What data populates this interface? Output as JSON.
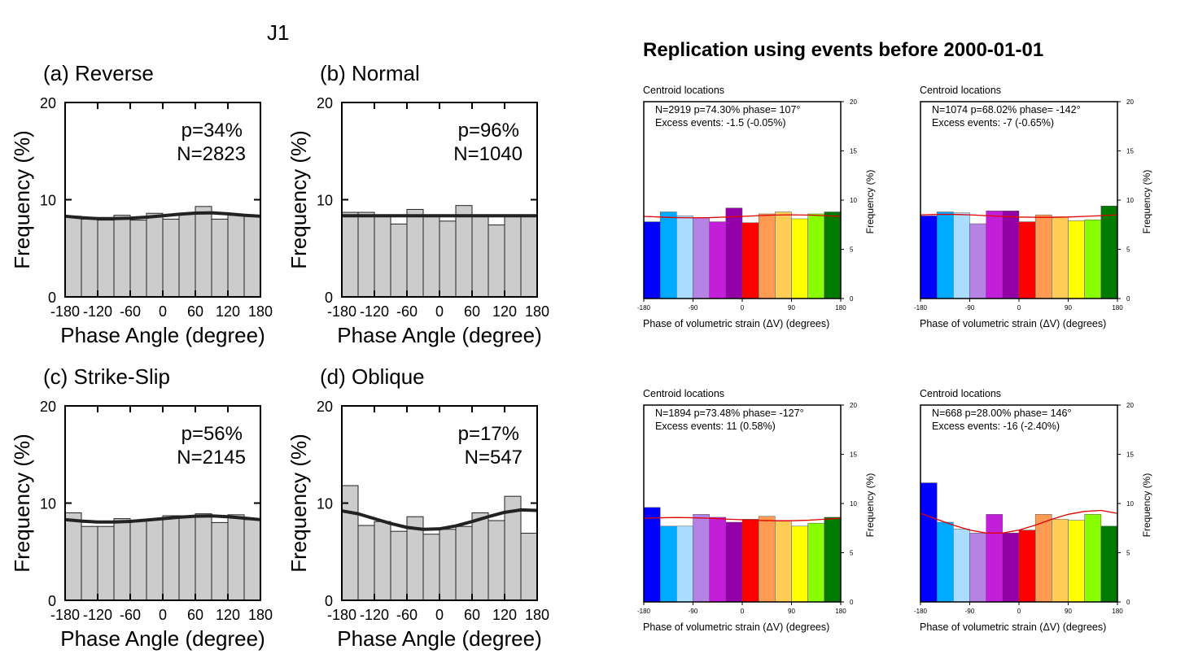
{
  "left_figure": {
    "label": "J1",
    "x_tick_labels": [
      "-180",
      "-120",
      "-60",
      "0",
      "60",
      "120",
      "180"
    ],
    "y_tick_labels": [
      "0",
      "10",
      "20"
    ],
    "xlabel": "Phase Angle (degree)",
    "ylabel": "Frequency (%)"
  },
  "right_figure": {
    "title": "Replication using events before 2000-01-01",
    "panel_header": "Centroid locations",
    "x_tick_labels": [
      "-180",
      "-90",
      "0",
      "90",
      "180"
    ],
    "y_tick_labels": [
      "0",
      "5",
      "10",
      "15",
      "20"
    ],
    "xlabel": "Phase of volumetric strain (ΔV) (degrees)",
    "ylabel": "Frequency (%)",
    "bar_colors": [
      "#0000ff",
      "#00aaff",
      "#aaddff",
      "#b583e4",
      "#c21fd8",
      "#9300a8",
      "#ff0000",
      "#ff9a52",
      "#ffcc55",
      "#ffff00",
      "#88ff00",
      "#007a00"
    ],
    "fit_color": "#e00000"
  },
  "chart_data": [
    {
      "type": "bar",
      "title": "(a) Reverse",
      "annotation": [
        "p=34%",
        "N=2823"
      ],
      "x_bin_edges": [
        -180,
        -150,
        -120,
        -90,
        -60,
        -30,
        0,
        30,
        60,
        90,
        120,
        150,
        180
      ],
      "values": [
        8.3,
        8.0,
        7.9,
        8.4,
        7.9,
        8.6,
        8.0,
        8.6,
        9.3,
        8.0,
        8.4,
        8.3
      ],
      "fit": [
        8.3,
        8.15,
        8.05,
        8.05,
        8.1,
        8.2,
        8.35,
        8.5,
        8.62,
        8.65,
        8.55,
        8.4,
        8.3
      ],
      "ylim": [
        0,
        20
      ],
      "xlim": [
        -180,
        180
      ],
      "xlabel": "Phase Angle (degree)",
      "ylabel": "Frequency (%)"
    },
    {
      "type": "bar",
      "title": "(b) Normal",
      "annotation": [
        "p=96%",
        "N=1040"
      ],
      "x_bin_edges": [
        -180,
        -150,
        -120,
        -90,
        -60,
        -30,
        0,
        30,
        60,
        90,
        120,
        150,
        180
      ],
      "values": [
        8.7,
        8.7,
        8.3,
        7.5,
        9.0,
        8.3,
        7.8,
        9.4,
        8.3,
        7.4,
        8.3,
        8.4
      ],
      "fit": [
        8.35,
        8.35,
        8.35,
        8.35,
        8.35,
        8.35,
        8.35,
        8.35,
        8.35,
        8.35,
        8.35,
        8.35,
        8.35
      ],
      "ylim": [
        0,
        20
      ],
      "xlim": [
        -180,
        180
      ],
      "xlabel": "Phase Angle (degree)",
      "ylabel": "Frequency (%)"
    },
    {
      "type": "bar",
      "title": "(c) Strike-Slip",
      "annotation": [
        "p=56%",
        "N=2145"
      ],
      "x_bin_edges": [
        -180,
        -150,
        -120,
        -90,
        -60,
        -30,
        0,
        30,
        60,
        90,
        120,
        150,
        180
      ],
      "values": [
        9.0,
        7.6,
        7.6,
        8.4,
        8.2,
        8.3,
        8.7,
        8.7,
        8.9,
        8.0,
        8.8,
        8.3
      ],
      "fit": [
        8.3,
        8.15,
        8.05,
        8.05,
        8.12,
        8.25,
        8.4,
        8.55,
        8.65,
        8.68,
        8.6,
        8.45,
        8.3
      ],
      "ylim": [
        0,
        20
      ],
      "xlim": [
        -180,
        180
      ],
      "xlabel": "Phase Angle (degree)",
      "ylabel": "Frequency (%)"
    },
    {
      "type": "bar",
      "title": "(d) Oblique",
      "annotation": [
        "p=17%",
        "N=547"
      ],
      "x_bin_edges": [
        -180,
        -150,
        -120,
        -90,
        -60,
        -30,
        0,
        30,
        60,
        90,
        120,
        150,
        180
      ],
      "values": [
        11.8,
        7.7,
        8.1,
        7.1,
        8.6,
        6.8,
        7.3,
        7.6,
        9.0,
        8.2,
        10.7,
        6.9
      ],
      "fit": [
        9.2,
        8.9,
        8.4,
        7.9,
        7.5,
        7.3,
        7.35,
        7.65,
        8.1,
        8.6,
        9.05,
        9.3,
        9.25
      ],
      "ylim": [
        0,
        20
      ],
      "xlim": [
        -180,
        180
      ],
      "xlabel": "Phase Angle (degree)",
      "ylabel": "Frequency (%)"
    },
    {
      "type": "bar",
      "title": "Centroid locations",
      "annotation": [
        "N=2919   p=74.30%   phase= 107°",
        "Excess events: -1.5 (-0.05%)"
      ],
      "x_bin_edges": [
        -180,
        -150,
        -120,
        -90,
        -60,
        -30,
        0,
        30,
        60,
        90,
        120,
        150,
        180
      ],
      "values": [
        7.8,
        8.8,
        8.4,
        8.2,
        7.8,
        9.2,
        7.7,
        8.6,
        8.8,
        8.1,
        8.6,
        8.8
      ],
      "fit": [
        8.35,
        8.28,
        8.22,
        8.2,
        8.22,
        8.28,
        8.35,
        8.42,
        8.48,
        8.5,
        8.48,
        8.42,
        8.35
      ],
      "ylim": [
        0,
        20
      ],
      "xlim": [
        -180,
        180
      ],
      "xlabel": "Phase of volumetric strain (ΔV) (degrees)",
      "ylabel": "Frequency (%)"
    },
    {
      "type": "bar",
      "title": "Centroid locations",
      "annotation": [
        "N=1074   p=68.02%   phase= -142°",
        "Excess events: -7 (-0.65%)"
      ],
      "x_bin_edges": [
        -180,
        -150,
        -120,
        -90,
        -60,
        -30,
        0,
        30,
        60,
        90,
        120,
        150,
        180
      ],
      "values": [
        8.4,
        8.8,
        8.7,
        7.6,
        8.9,
        8.9,
        7.8,
        8.5,
        8.3,
        7.9,
        8.0,
        9.4
      ],
      "fit": [
        8.5,
        8.55,
        8.55,
        8.5,
        8.42,
        8.35,
        8.28,
        8.25,
        8.25,
        8.28,
        8.35,
        8.42,
        8.5
      ],
      "ylim": [
        0,
        20
      ],
      "xlim": [
        -180,
        180
      ],
      "xlabel": "Phase of volumetric strain (ΔV) (degrees)",
      "ylabel": "Frequency (%)"
    },
    {
      "type": "bar",
      "title": "Centroid locations",
      "annotation": [
        "N=1894   p=73.48%   phase= -127°",
        "Excess events: 11 (0.58%)"
      ],
      "x_bin_edges": [
        -180,
        -150,
        -120,
        -90,
        -60,
        -30,
        0,
        30,
        60,
        90,
        120,
        150,
        180
      ],
      "values": [
        9.6,
        7.7,
        7.7,
        8.9,
        8.6,
        8.1,
        8.4,
        8.7,
        8.2,
        7.7,
        8.0,
        8.6
      ],
      "fit": [
        8.5,
        8.55,
        8.58,
        8.55,
        8.5,
        8.42,
        8.35,
        8.28,
        8.25,
        8.25,
        8.3,
        8.4,
        8.5
      ],
      "ylim": [
        0,
        20
      ],
      "xlim": [
        -180,
        180
      ],
      "xlabel": "Phase of volumetric strain (ΔV) (degrees)",
      "ylabel": "Frequency (%)"
    },
    {
      "type": "bar",
      "title": "Centroid locations",
      "annotation": [
        "N=668   p=28.00%   phase= 146°",
        "Excess events: -16 (-2.40%)"
      ],
      "x_bin_edges": [
        -180,
        -150,
        -120,
        -90,
        -60,
        -30,
        0,
        30,
        60,
        90,
        120,
        150,
        180
      ],
      "values": [
        12.1,
        8.1,
        7.4,
        7.0,
        8.9,
        7.0,
        7.3,
        8.9,
        8.4,
        8.3,
        8.9,
        7.7
      ],
      "fit": [
        9.0,
        8.4,
        7.8,
        7.3,
        7.0,
        7.0,
        7.3,
        7.8,
        8.4,
        8.9,
        9.2,
        9.3,
        9.0
      ],
      "ylim": [
        0,
        20
      ],
      "xlim": [
        -180,
        180
      ],
      "xlabel": "Phase of volumetric strain (ΔV) (degrees)",
      "ylabel": "Frequency (%)"
    }
  ]
}
